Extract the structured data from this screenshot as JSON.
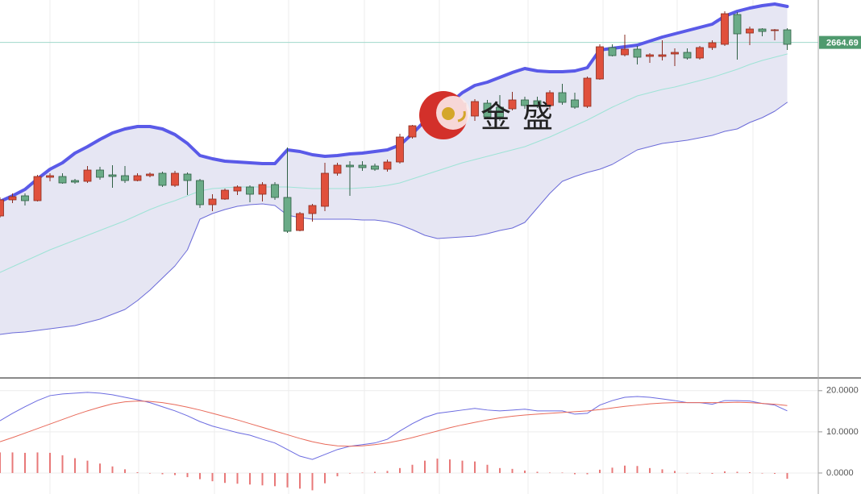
{
  "watermark": "金盛",
  "chart_data": [
    {
      "type": "candlestick",
      "ylim": [
        2457,
        2691
      ],
      "up_color": "#e0503c",
      "up_edge": "#8a2c20",
      "down_color": "#6aab87",
      "down_edge": "#2f5f44",
      "open": [
        2557,
        2567,
        2569.5,
        2566.5,
        2581,
        2581.5,
        2579,
        2578.5,
        2585.5,
        2582.5,
        2582,
        2579,
        2582,
        2583.5,
        2576,
        2583,
        2579,
        2564,
        2567.5,
        2572.5,
        2575,
        2570.5,
        2576.5,
        2568.5,
        2548,
        2558.5,
        2563,
        2583.5,
        2588.5,
        2588.5,
        2588,
        2586,
        2590.5,
        2606,
        2613,
        2618,
        2622,
        2621,
        2619,
        2627,
        2624.5,
        2623.5,
        2629,
        2628.5,
        2625.5,
        2633.5,
        2629,
        2625,
        2642,
        2661.5,
        2657,
        2660.5,
        2656,
        2656,
        2657.5,
        2658.5,
        2655,
        2661.5,
        2663.5,
        2682,
        2670.5,
        2673,
        2672,
        2672.5
      ],
      "high": [
        2568.5,
        2571,
        2571,
        2582.5,
        2583.5,
        2583.5,
        2580,
        2588,
        2587.5,
        2588.5,
        2588,
        2583.5,
        2584,
        2584.5,
        2585,
        2584,
        2580,
        2570.5,
        2574,
        2576,
        2576,
        2578,
        2578,
        2599.5,
        2559.5,
        2564.5,
        2590,
        2590,
        2591,
        2591,
        2589.5,
        2592,
        2608,
        2613.5,
        2616,
        2624.5,
        2626,
        2628.5,
        2629.5,
        2629,
        2632,
        2634,
        2631,
        2631,
        2635,
        2639,
        2633.5,
        2643.5,
        2663.5,
        2663.5,
        2669.5,
        2662.5,
        2658,
        2666,
        2661,
        2661,
        2662.5,
        2666,
        2684,
        2683.5,
        2674.5,
        2673.5,
        2673,
        2673.5
      ],
      "low": [
        2556,
        2565,
        2563.5,
        2566,
        2578.5,
        2577,
        2577,
        2577.5,
        2579.5,
        2574.5,
        2577.5,
        2578.5,
        2581,
        2575,
        2575,
        2570,
        2562,
        2560,
        2567,
        2570,
        2565.5,
        2566,
        2567,
        2546.5,
        2547.5,
        2553.5,
        2560,
        2582,
        2569.5,
        2585,
        2585,
        2584.5,
        2589.5,
        2605,
        2611,
        2616,
        2616,
        2618.5,
        2616,
        2617,
        2616,
        2622.5,
        2623.5,
        2624,
        2623,
        2626,
        2623.5,
        2624,
        2641.5,
        2656,
        2656,
        2651,
        2652,
        2653.5,
        2650,
        2654,
        2654,
        2660,
        2662.5,
        2654,
        2663,
        2668.5,
        2666,
        2660
      ],
      "close": [
        2567,
        2569,
        2566.5,
        2581.5,
        2582,
        2577.5,
        2578,
        2585.5,
        2581,
        2581.5,
        2579,
        2582,
        2583,
        2576,
        2583.5,
        2579,
        2564,
        2567.5,
        2573,
        2575,
        2570.5,
        2576.5,
        2568.5,
        2547.5,
        2558.5,
        2563.5,
        2583.5,
        2588.5,
        2587.5,
        2587,
        2586,
        2590.5,
        2606,
        2613,
        2615,
        2623,
        2620,
        2627,
        2628,
        2618.5,
        2618.5,
        2629,
        2625.5,
        2625.5,
        2633.5,
        2627.5,
        2624.5,
        2642.5,
        2662,
        2656.5,
        2660.5,
        2655.5,
        2657,
        2657,
        2658.5,
        2655,
        2661.5,
        2664.5,
        2682.5,
        2670,
        2673,
        2671.5,
        2672.5,
        2663.5
      ],
      "overlays": [
        {
          "color": "#5a5ae8",
          "style": "thick",
          "values": [
            2566,
            2569.5,
            2573.5,
            2580,
            2586,
            2590,
            2596,
            2600,
            2604.5,
            2608.5,
            2611,
            2612.5,
            2612.5,
            2611,
            2607.5,
            2602,
            2594.5,
            2592.5,
            2591,
            2590.5,
            2590,
            2589.5,
            2589.5,
            2598,
            2597,
            2595,
            2594,
            2594.5,
            2595.5,
            2596,
            2597,
            2598,
            2601,
            2608,
            2616,
            2621,
            2627,
            2633.5,
            2638,
            2640,
            2643,
            2646,
            2648.5,
            2647,
            2646.5,
            2646.5,
            2647,
            2649,
            2660,
            2661,
            2662,
            2663,
            2665.5,
            2668,
            2670,
            2672,
            2674,
            2676,
            2681,
            2684,
            2686,
            2687.5,
            2688.5,
            2687
          ]
        },
        {
          "color": "#9ee3d6",
          "style": "thin",
          "values": [
            2522,
            2525.5,
            2529,
            2532.5,
            2536,
            2539,
            2542,
            2545,
            2548,
            2551,
            2554,
            2557.5,
            2561,
            2564,
            2566.5,
            2569.5,
            2572.5,
            2574,
            2574.5,
            2575,
            2575,
            2575,
            2575,
            2575,
            2574.5,
            2574,
            2574,
            2574,
            2574,
            2574.5,
            2575,
            2576,
            2577.5,
            2580,
            2582.5,
            2585,
            2587.5,
            2590,
            2592,
            2594,
            2596,
            2598,
            2600,
            2603,
            2606,
            2609.5,
            2613,
            2616.5,
            2620.5,
            2624.5,
            2628,
            2631.5,
            2633.5,
            2635.5,
            2637,
            2639,
            2641,
            2643,
            2645.5,
            2648,
            2651,
            2653.5,
            2655.5,
            2657.5
          ]
        },
        {
          "color": "#6b6bd8",
          "style": "thin",
          "values": [
            2483.5,
            2484.5,
            2485,
            2486,
            2487,
            2488,
            2489,
            2491,
            2493,
            2496,
            2499,
            2504.5,
            2511,
            2518.5,
            2526,
            2536,
            2555,
            2558.5,
            2561,
            2563,
            2564,
            2564.5,
            2563.5,
            2557.5,
            2556,
            2555,
            2555,
            2555,
            2555,
            2554.5,
            2554.5,
            2553.5,
            2551.5,
            2548.5,
            2545,
            2543,
            2543.5,
            2544,
            2544.5,
            2546,
            2548,
            2549.5,
            2553,
            2562,
            2571,
            2578.5,
            2581.5,
            2584,
            2586,
            2589,
            2593.5,
            2598,
            2600,
            2602,
            2603,
            2604,
            2605.5,
            2607,
            2609.5,
            2611,
            2615,
            2618,
            2622,
            2627.5
          ]
        }
      ],
      "band_fill": "#e6e6f3",
      "last_price": {
        "value": 2664.69,
        "label": "2664.69"
      },
      "last_price_color": "#4f9a6e"
    },
    {
      "type": "macd",
      "ylim": [
        -5.1,
        22.9
      ],
      "yticks": [
        {
          "value": 0,
          "label": "0.0000"
        },
        {
          "value": 10,
          "label": "10.0000"
        },
        {
          "value": 20,
          "label": "20.0000"
        }
      ],
      "grid": true,
      "lines": [
        {
          "color": "#6a6ae0",
          "values": [
            12.7,
            14.5,
            16.1,
            17.6,
            18.8,
            19.2,
            19.4,
            19.6,
            19.4,
            19.0,
            18.4,
            17.8,
            17.1,
            16.1,
            15.1,
            13.9,
            12.5,
            11.4,
            10.6,
            9.8,
            9.2,
            8.2,
            7.3,
            5.7,
            4.1,
            3.3,
            4.5,
            5.7,
            6.5,
            6.9,
            7.3,
            8.2,
            10.2,
            12.0,
            13.5,
            14.5,
            14.9,
            15.3,
            15.7,
            15.3,
            15.1,
            15.3,
            15.5,
            15.1,
            15.1,
            15.1,
            14.3,
            14.5,
            16.5,
            17.6,
            18.4,
            18.6,
            18.4,
            18.0,
            17.6,
            17.1,
            17.1,
            16.7,
            17.6,
            17.6,
            17.5,
            16.9,
            16.5,
            15.1
          ]
        },
        {
          "color": "#e86a5a",
          "values": [
            7.6,
            8.6,
            9.7,
            10.8,
            11.9,
            13.0,
            14.1,
            15.1,
            16.0,
            16.8,
            17.3,
            17.5,
            17.4,
            17.1,
            16.6,
            16.0,
            15.3,
            14.5,
            13.7,
            12.9,
            12.0,
            11.1,
            10.2,
            9.3,
            8.4,
            7.6,
            7.0,
            6.6,
            6.5,
            6.6,
            6.9,
            7.3,
            7.9,
            8.6,
            9.4,
            10.2,
            11.0,
            11.7,
            12.3,
            12.9,
            13.4,
            13.8,
            14.1,
            14.3,
            14.5,
            14.7,
            14.9,
            15.1,
            15.4,
            15.8,
            16.2,
            16.5,
            16.8,
            17.0,
            17.1,
            17.1,
            17.1,
            17.1,
            17.1,
            17.2,
            17.1,
            16.9,
            16.7,
            16.4
          ]
        }
      ],
      "histogram": {
        "color": "#e87878",
        "values": [
          5.0,
          5.0,
          4.9,
          5.0,
          4.9,
          4.3,
          3.6,
          3.0,
          2.3,
          1.6,
          0.9,
          0.2,
          -0.1,
          -0.3,
          -0.5,
          -1.0,
          -1.5,
          -2.0,
          -2.4,
          -2.6,
          -2.8,
          -3.0,
          -3.2,
          -3.5,
          -3.8,
          -4.2,
          -2.5,
          -0.8,
          0,
          0.1,
          0.3,
          0.5,
          1.2,
          2.0,
          3.0,
          3.5,
          3.3,
          3.0,
          2.8,
          2.0,
          1.2,
          1.0,
          0.6,
          0.3,
          0.1,
          0.1,
          -0.3,
          -0.3,
          0.8,
          1.3,
          1.8,
          1.7,
          1.2,
          0.9,
          0.5,
          0,
          -0.1,
          -0.2,
          0.4,
          0.3,
          0.2,
          -0.1,
          -0.2,
          -1.4
        ]
      }
    }
  ]
}
